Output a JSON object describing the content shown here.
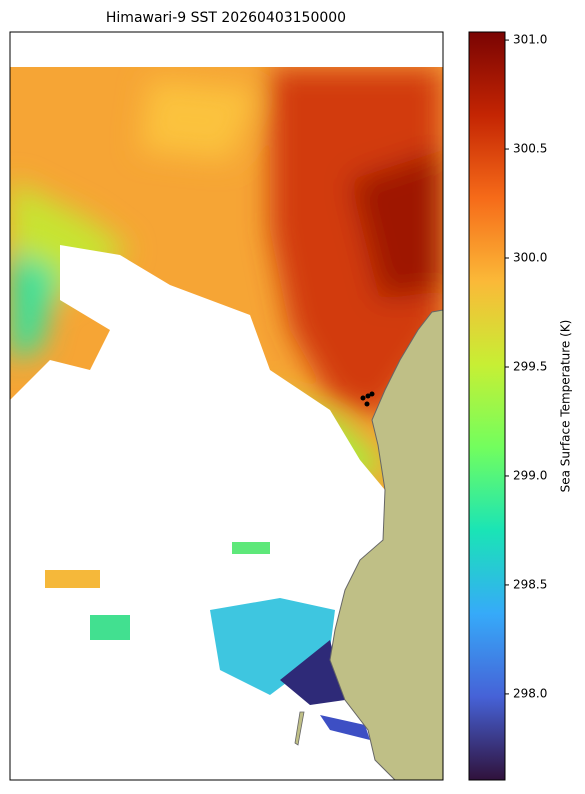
{
  "chart_data": {
    "type": "map",
    "title": "Himawari-9 SST 20260403150000",
    "colorbar": {
      "label": "Sea Surface Temperature (K)",
      "lim": [
        297.605,
        301.037
      ],
      "ticks": [
        {
          "value": 298.0,
          "label": "298.0"
        },
        {
          "value": 298.5,
          "label": "298.5"
        },
        {
          "value": 299.0,
          "label": "299.0"
        },
        {
          "value": 299.5,
          "label": "299.5"
        },
        {
          "value": 300.0,
          "label": "300.0"
        },
        {
          "value": 300.5,
          "label": "300.5"
        },
        {
          "value": 301.0,
          "label": "301.0"
        }
      ],
      "colors": [
        "#30123b",
        "#4662d7",
        "#36aaf9",
        "#1ae4b6",
        "#72fe5e",
        "#c7ef34",
        "#fbb938",
        "#f66b19",
        "#c42503",
        "#7a0403"
      ]
    }
  }
}
